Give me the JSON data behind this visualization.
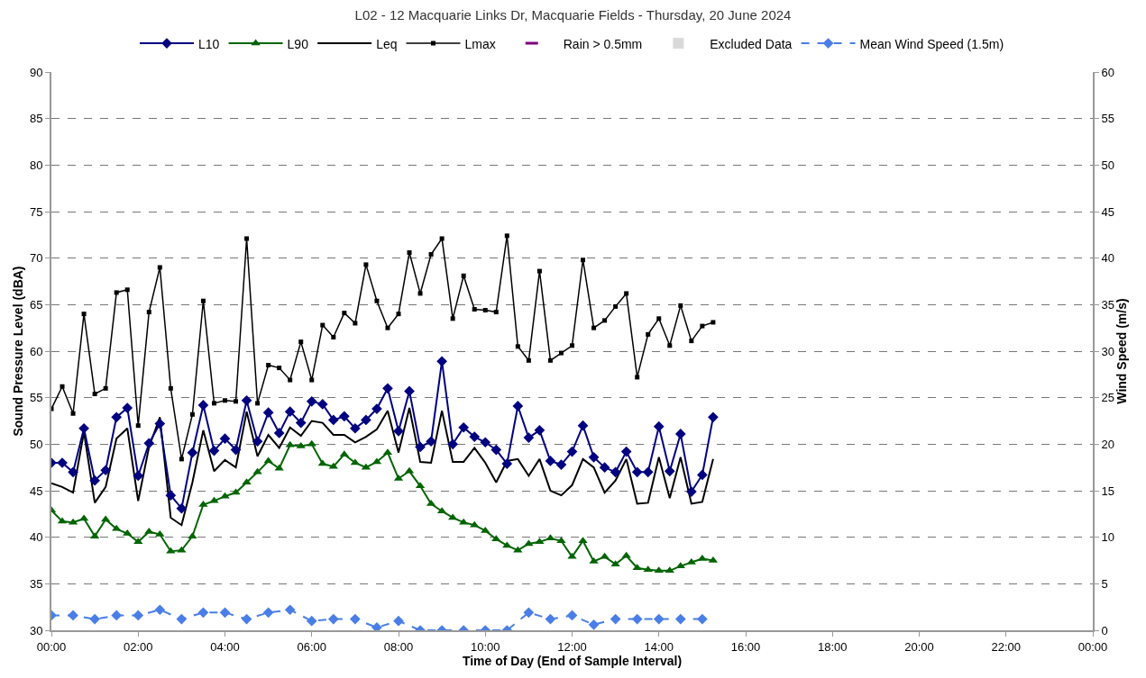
{
  "chart_data": {
    "type": "line",
    "title": "L02 - 12 Macquarie Links Dr, Macquarie Fields - Thursday, 20 June 2024",
    "xlabel": "Time of Day (End of Sample Interval)",
    "ylabel": "Sound Pressure Level (dBA)",
    "y2label": "Wind Speed (m/s)",
    "x": [
      0,
      0.25,
      0.5,
      0.75,
      1,
      1.25,
      1.5,
      1.75,
      2,
      2.25,
      2.5,
      2.75,
      3,
      3.25,
      3.5,
      3.75,
      4,
      4.25,
      4.5,
      4.75,
      5,
      5.25,
      5.5,
      5.75,
      6,
      6.25,
      6.5,
      6.75,
      7,
      7.25,
      7.5,
      7.75,
      8,
      8.25,
      8.5,
      8.75,
      9,
      9.25,
      9.5,
      9.75,
      10,
      10.25,
      10.5,
      10.75,
      11,
      11.25,
      11.5,
      11.75,
      12,
      12.25,
      12.5,
      12.75,
      13,
      13.25,
      13.5,
      13.75,
      14,
      14.25,
      14.5,
      14.75,
      15,
      15.25
    ],
    "series": [
      {
        "name": "L10",
        "color": "#000080",
        "marker": "diamond",
        "line_style": "solid",
        "values": [
          48.0,
          48.0,
          47.0,
          51.7,
          46.1,
          47.2,
          52.9,
          53.9,
          46.6,
          50.1,
          52.2,
          44.5,
          43.1,
          49.1,
          54.2,
          49.3,
          50.6,
          49.4,
          54.7,
          50.3,
          53.4,
          51.2,
          53.5,
          52.3,
          54.6,
          54.3,
          52.6,
          53.0,
          51.7,
          52.6,
          53.8,
          56.0,
          51.4,
          55.7,
          49.7,
          50.3,
          58.9,
          50.0,
          51.8,
          50.8,
          50.2,
          49.4,
          47.9,
          54.1,
          50.7,
          51.5,
          48.2,
          47.8,
          49.2,
          52.0,
          48.6,
          47.5,
          47.0,
          49.2,
          47.0,
          47.0,
          51.9,
          47.1,
          51.1,
          44.9,
          46.7,
          52.9
        ]
      },
      {
        "name": "L90",
        "color": "#006400",
        "marker": "triangle",
        "line_style": "solid",
        "values": [
          42.9,
          41.7,
          41.6,
          42.0,
          40.1,
          41.9,
          40.9,
          40.4,
          39.5,
          40.6,
          40.3,
          38.5,
          38.6,
          40.1,
          43.5,
          43.9,
          44.4,
          44.8,
          45.9,
          47.0,
          48.2,
          47.4,
          49.9,
          49.8,
          50.0,
          47.9,
          47.6,
          48.9,
          48.0,
          47.5,
          48.1,
          49.1,
          46.3,
          47.1,
          45.5,
          43.6,
          42.8,
          42.1,
          41.6,
          41.3,
          40.7,
          39.8,
          39.1,
          38.6,
          39.3,
          39.5,
          39.9,
          39.6,
          37.9,
          39.6,
          37.4,
          37.9,
          37.1,
          38.0,
          36.7,
          36.5,
          36.4,
          36.4,
          36.9,
          37.3,
          37.7,
          37.5
        ]
      },
      {
        "name": "Leq",
        "color": "#000000",
        "marker": "none",
        "line_style": "solid",
        "values": [
          45.8,
          45.4,
          44.8,
          51.3,
          43.7,
          45.4,
          50.6,
          51.7,
          43.9,
          49.7,
          52.9,
          42.1,
          41.3,
          45.9,
          51.5,
          47.1,
          48.3,
          47.5,
          53.5,
          48.7,
          51.0,
          49.6,
          51.8,
          50.9,
          52.5,
          52.3,
          51.0,
          51.0,
          50.2,
          50.8,
          51.6,
          53.6,
          49.1,
          53.9,
          48.1,
          48.0,
          53.6,
          48.1,
          48.1,
          49.6,
          48.0,
          45.9,
          48.2,
          48.4,
          46.6,
          48.4,
          45.0,
          44.5,
          45.6,
          48.4,
          47.5,
          44.8,
          46.1,
          48.4,
          43.6,
          43.7,
          48.6,
          44.2,
          48.6,
          43.6,
          43.8,
          48.4
        ]
      },
      {
        "name": "Lmax",
        "color": "#000000",
        "marker": "square",
        "line_style": "solid",
        "values": [
          53.8,
          56.2,
          53.3,
          64.0,
          55.4,
          56.0,
          66.3,
          66.6,
          52.0,
          64.2,
          69.0,
          56.0,
          48.4,
          53.2,
          65.4,
          54.4,
          54.7,
          54.6,
          72.1,
          54.4,
          58.5,
          58.2,
          56.9,
          61.0,
          56.9,
          62.8,
          61.5,
          64.1,
          63.0,
          69.3,
          65.4,
          62.5,
          64.0,
          70.6,
          66.2,
          70.4,
          72.1,
          63.5,
          68.1,
          64.5,
          64.4,
          64.2,
          72.4,
          60.5,
          59.0,
          68.6,
          59.0,
          59.8,
          60.6,
          69.8,
          62.5,
          63.3,
          64.8,
          66.2,
          57.2,
          61.8,
          63.5,
          60.6,
          64.9,
          61.1,
          62.7,
          63.1
        ]
      },
      {
        "name": "Rain > 0.5mm",
        "color": "#800080",
        "marker": "dash",
        "line_style": "none",
        "values": [
          null,
          null,
          null,
          null,
          null,
          null,
          null,
          null,
          null,
          null,
          null,
          null,
          null,
          null,
          null,
          null,
          null,
          null,
          null,
          null,
          null,
          null,
          null,
          null,
          null,
          null,
          null,
          null,
          null,
          null,
          null,
          null,
          null,
          null,
          null,
          null,
          null,
          null,
          null,
          null,
          null,
          null,
          null,
          null,
          null,
          null,
          null,
          null,
          null,
          null,
          null,
          null,
          null,
          null,
          null,
          null,
          null,
          null,
          null,
          null,
          null,
          null
        ]
      },
      {
        "name": "Excluded Data",
        "type": "bar",
        "color": "#d9d9d9",
        "values": [
          null,
          null,
          null,
          null,
          null,
          null,
          null,
          null,
          null,
          null,
          null,
          null,
          null,
          null,
          null,
          null,
          null,
          null,
          null,
          null,
          null,
          null,
          null,
          null,
          null,
          null,
          null,
          null,
          null,
          null,
          null,
          null,
          null,
          null,
          null,
          null,
          null,
          null,
          null,
          null,
          null,
          null,
          null,
          null,
          null,
          null,
          null,
          null,
          null,
          null,
          null,
          null,
          null,
          null,
          null,
          null,
          null,
          null,
          null,
          null,
          null,
          null
        ]
      },
      {
        "name": "Mean Wind Speed (1.5m)",
        "color": "#4a7ee6",
        "marker": "diamond",
        "line_style": "dashed",
        "axis": "y2",
        "x": [
          0,
          0.5,
          1,
          1.5,
          2,
          2.5,
          3,
          3.5,
          4,
          4.5,
          5,
          5.5,
          6,
          6.5,
          7,
          7.5,
          8,
          8.5,
          9,
          9.5,
          10,
          10.5,
          11,
          11.5,
          12,
          12.5,
          13,
          13.5,
          14,
          14.5,
          15
        ],
        "values": [
          1.6,
          1.6,
          1.2,
          1.6,
          1.6,
          2.2,
          1.2,
          1.9,
          1.9,
          1.2,
          1.9,
          2.2,
          1.0,
          1.2,
          1.2,
          0.3,
          1.0,
          0.0,
          0.0,
          0.0,
          0.0,
          0.0,
          1.9,
          1.2,
          1.6,
          0.6,
          1.2,
          1.2,
          1.2,
          1.2,
          1.2
        ]
      }
    ],
    "xlim": [
      0,
      24
    ],
    "xticks": [
      {
        "value": 0,
        "label": "00:00"
      },
      {
        "value": 2,
        "label": "02:00"
      },
      {
        "value": 4,
        "label": "04:00"
      },
      {
        "value": 6,
        "label": "06:00"
      },
      {
        "value": 8,
        "label": "08:00"
      },
      {
        "value": 10,
        "label": "10:00"
      },
      {
        "value": 12,
        "label": "12:00"
      },
      {
        "value": 14,
        "label": "14:00"
      },
      {
        "value": 16,
        "label": "16:00"
      },
      {
        "value": 18,
        "label": "18:00"
      },
      {
        "value": 20,
        "label": "20:00"
      },
      {
        "value": 22,
        "label": "22:00"
      },
      {
        "value": 24,
        "label": "00:00"
      }
    ],
    "ylim": [
      30,
      90
    ],
    "yticks": [
      30,
      35,
      40,
      45,
      50,
      55,
      60,
      65,
      70,
      75,
      80,
      85,
      90
    ],
    "y2lim": [
      0,
      60
    ],
    "y2ticks": [
      0,
      5,
      10,
      15,
      20,
      25,
      30,
      35,
      40,
      45,
      50,
      55,
      60
    ],
    "grid": "y",
    "legend": "top"
  }
}
